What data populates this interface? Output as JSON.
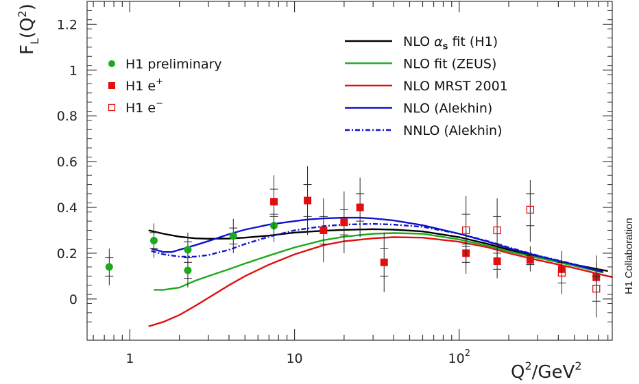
{
  "chart_data": {
    "type": "scatter",
    "ylabel_main": "F",
    "ylabel_sub": "L",
    "ylabel_rest": "(Q",
    "ylabel_sup": "2",
    "ylabel_close": ")",
    "xlabel_main": "Q",
    "xlabel_sup": "2",
    "xlabel_mid": "/GeV",
    "xlabel_sup2": "2",
    "side_label": "H1 Collaboration",
    "x_scale": "log",
    "xlim": [
      0.55,
      850
    ],
    "ylim": [
      -0.18,
      1.3
    ],
    "x_ticks": [
      {
        "value": 1,
        "label": "1",
        "sup": ""
      },
      {
        "value": 10,
        "label": "10",
        "sup": ""
      },
      {
        "value": 100,
        "label": "10",
        "sup": "2"
      }
    ],
    "y_ticks": [
      {
        "value": 0,
        "label": "0"
      },
      {
        "value": 0.2,
        "label": "0.2"
      },
      {
        "value": 0.4,
        "label": "0.4"
      },
      {
        "value": 0.6,
        "label": "0.6"
      },
      {
        "value": 0.8,
        "label": "0.8"
      },
      {
        "value": 1.0,
        "label": "1"
      },
      {
        "value": 1.2,
        "label": "1.2"
      }
    ],
    "point_series": [
      {
        "name": "H1 preliminary",
        "sup": "",
        "marker": "circle",
        "color": "#1aaa1a",
        "points": [
          {
            "x": 0.75,
            "y": 0.14,
            "lo": 0.06,
            "hi": 0.22,
            "ilo": 0.1,
            "ihi": 0.18
          },
          {
            "x": 1.4,
            "y": 0.255,
            "lo": 0.18,
            "hi": 0.33,
            "ilo": 0.22,
            "ihi": 0.29
          },
          {
            "x": 2.25,
            "y": 0.215,
            "lo": 0.14,
            "hi": 0.29,
            "ilo": 0.18,
            "ihi": 0.25
          },
          {
            "x": 2.25,
            "y": 0.125,
            "lo": 0.05,
            "hi": 0.2,
            "ilo": 0.09,
            "ihi": 0.16
          },
          {
            "x": 4.25,
            "y": 0.275,
            "lo": 0.2,
            "hi": 0.35,
            "ilo": 0.24,
            "ihi": 0.31
          },
          {
            "x": 7.5,
            "y": 0.32,
            "lo": 0.25,
            "hi": 0.39,
            "ilo": 0.28,
            "ihi": 0.36
          }
        ]
      },
      {
        "name": "H1 e",
        "sup": "+",
        "marker": "square-filled",
        "color": "#e01010",
        "points": [
          {
            "x": 7.5,
            "y": 0.425,
            "lo": 0.29,
            "hi": 0.54,
            "ilo": 0.37,
            "ihi": 0.48
          },
          {
            "x": 12.0,
            "y": 0.43,
            "lo": 0.28,
            "hi": 0.58,
            "ilo": 0.36,
            "ihi": 0.5
          },
          {
            "x": 15.0,
            "y": 0.3,
            "lo": 0.16,
            "hi": 0.44,
            "ilo": 0.24,
            "ihi": 0.36
          },
          {
            "x": 20.0,
            "y": 0.335,
            "lo": 0.2,
            "hi": 0.47,
            "ilo": 0.28,
            "ihi": 0.39
          },
          {
            "x": 25.0,
            "y": 0.4,
            "lo": 0.27,
            "hi": 0.53,
            "ilo": 0.34,
            "ihi": 0.46
          },
          {
            "x": 35.0,
            "y": 0.16,
            "lo": 0.03,
            "hi": 0.29,
            "ilo": 0.1,
            "ihi": 0.22
          },
          {
            "x": 110.0,
            "y": 0.2,
            "lo": 0.11,
            "hi": 0.3,
            "ilo": 0.16,
            "ihi": 0.24
          },
          {
            "x": 170.0,
            "y": 0.165,
            "lo": 0.09,
            "hi": 0.24,
            "ilo": 0.13,
            "ihi": 0.2
          },
          {
            "x": 270.0,
            "y": 0.17,
            "lo": 0.12,
            "hi": 0.23,
            "ilo": 0.15,
            "ihi": 0.19
          },
          {
            "x": 420.0,
            "y": 0.13,
            "lo": 0.06,
            "hi": 0.2,
            "ilo": 0.1,
            "ihi": 0.16
          },
          {
            "x": 680.0,
            "y": 0.095,
            "lo": 0.0,
            "hi": 0.19,
            "ilo": 0.06,
            "ihi": 0.13
          }
        ]
      },
      {
        "name": "H1 e",
        "sup": "−",
        "marker": "square-open",
        "color": "#e01010",
        "points": [
          {
            "x": 110.0,
            "y": 0.3,
            "lo": 0.15,
            "hi": 0.45,
            "ilo": 0.23,
            "ihi": 0.37
          },
          {
            "x": 170.0,
            "y": 0.3,
            "lo": 0.18,
            "hi": 0.44,
            "ilo": 0.24,
            "ihi": 0.36
          },
          {
            "x": 270.0,
            "y": 0.39,
            "lo": 0.25,
            "hi": 0.52,
            "ilo": 0.32,
            "ihi": 0.46
          },
          {
            "x": 420.0,
            "y": 0.115,
            "lo": 0.02,
            "hi": 0.21,
            "ilo": 0.07,
            "ihi": 0.16
          },
          {
            "x": 680.0,
            "y": 0.045,
            "lo": -0.08,
            "hi": 0.16,
            "ilo": -0.01,
            "ihi": 0.1
          }
        ]
      }
    ],
    "curve_series": [
      {
        "name": "NLO ",
        "name_greek": "α",
        "name_sub": "s",
        "name_rest": " fit (H1)",
        "color": "#000000",
        "style": "solid",
        "x": [
          1.3,
          1.6,
          2.0,
          2.5,
          3.0,
          4.0,
          5.0,
          7.0,
          10,
          15,
          20,
          30,
          40,
          60,
          100,
          150,
          200,
          300,
          500,
          800
        ],
        "y": [
          0.3,
          0.285,
          0.272,
          0.265,
          0.263,
          0.264,
          0.268,
          0.277,
          0.29,
          0.298,
          0.302,
          0.305,
          0.303,
          0.295,
          0.27,
          0.24,
          0.215,
          0.185,
          0.15,
          0.122
        ]
      },
      {
        "name": "NLO fit (ZEUS)",
        "color": "#1aaa1a",
        "style": "solid",
        "x": [
          1.4,
          1.6,
          2.0,
          2.5,
          3.0,
          4.0,
          5.0,
          7.0,
          10,
          15,
          20,
          30,
          40,
          60,
          100,
          150,
          200,
          300,
          500,
          750
        ],
        "y": [
          0.04,
          0.04,
          0.05,
          0.08,
          0.1,
          0.13,
          0.155,
          0.19,
          0.225,
          0.257,
          0.272,
          0.285,
          0.288,
          0.285,
          0.26,
          0.232,
          0.208,
          0.18,
          0.145,
          0.115
        ]
      },
      {
        "name": "NLO MRST 2001",
        "color": "#e01010",
        "style": "solid",
        "x": [
          1.3,
          1.6,
          2.0,
          2.5,
          3.0,
          4.0,
          5.0,
          7.0,
          10,
          15,
          20,
          30,
          40,
          60,
          100,
          150,
          200,
          300,
          500,
          850
        ],
        "y": [
          -0.12,
          -0.1,
          -0.07,
          -0.03,
          0.005,
          0.06,
          0.1,
          0.15,
          0.195,
          0.235,
          0.252,
          0.265,
          0.27,
          0.268,
          0.25,
          0.225,
          0.2,
          0.17,
          0.135,
          0.095
        ]
      },
      {
        "name": "NLO (Alekhin)",
        "color": "#1010d0",
        "style": "solid",
        "x": [
          1.35,
          1.6,
          1.8,
          2.0,
          2.5,
          3.0,
          4.0,
          5.0,
          7.0,
          10,
          12,
          15,
          20,
          25,
          30,
          40,
          60,
          100,
          150,
          200,
          300,
          500,
          750
        ],
        "y": [
          0.22,
          0.205,
          0.205,
          0.215,
          0.235,
          0.253,
          0.283,
          0.303,
          0.325,
          0.34,
          0.347,
          0.352,
          0.355,
          0.355,
          0.352,
          0.343,
          0.322,
          0.285,
          0.25,
          0.222,
          0.188,
          0.15,
          0.118
        ]
      },
      {
        "name": "NNLO (Alekhin)",
        "color": "#1010d0",
        "style": "dashdot",
        "x": [
          1.35,
          1.6,
          2.0,
          2.5,
          3.0,
          4.0,
          5.0,
          7.0,
          10,
          15,
          20,
          30,
          40,
          60,
          100,
          150,
          200,
          300,
          500,
          750
        ],
        "y": [
          0.21,
          0.195,
          0.185,
          0.185,
          0.192,
          0.215,
          0.24,
          0.272,
          0.3,
          0.318,
          0.325,
          0.328,
          0.325,
          0.315,
          0.285,
          0.252,
          0.225,
          0.19,
          0.152,
          0.118
        ]
      }
    ]
  }
}
